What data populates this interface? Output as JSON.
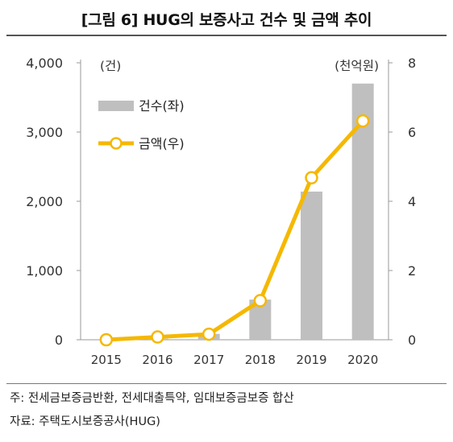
{
  "title": "[그림 6] HUG의 보증사고 건수 및 금액 추이",
  "notes": {
    "note1": "주: 전세금보증금반환, 전세대출특약, 임대보증금보증 합산",
    "note2": "자료: 주택도시보증공사(HUG)"
  },
  "chart_data": {
    "type": "bar",
    "categories": [
      "2015",
      "2016",
      "2017",
      "2018",
      "2019",
      "2020"
    ],
    "series": [
      {
        "name": "건수(좌)",
        "type": "bar",
        "axis": "left",
        "color": "#bfbfbf",
        "values": [
          0,
          15,
          85,
          580,
          2140,
          3700
        ]
      },
      {
        "name": "금액(우)",
        "type": "line",
        "axis": "right",
        "color": "#f5b800",
        "values": [
          0.0,
          0.08,
          0.16,
          1.13,
          4.68,
          6.32
        ]
      }
    ],
    "left_axis": {
      "unit": "(건)",
      "ylim": [
        0,
        4000
      ],
      "ticks": [
        0,
        1000,
        2000,
        3000,
        4000
      ],
      "tick_labels": [
        "0",
        "1,000",
        "2,000",
        "3,000",
        "4,000"
      ]
    },
    "right_axis": {
      "unit": "(천억원)",
      "ylim": [
        0,
        8
      ],
      "ticks": [
        0,
        2,
        4,
        6,
        8
      ],
      "tick_labels": [
        "0",
        "2",
        "4",
        "6",
        "8"
      ]
    },
    "legend_position": "top-left",
    "grid": false
  }
}
